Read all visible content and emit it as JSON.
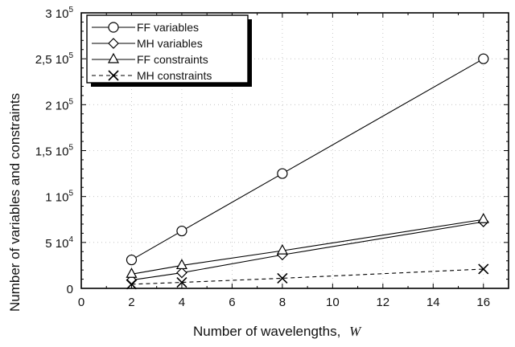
{
  "chart_data": {
    "type": "line",
    "xlabel": "Number of wavelengths,",
    "xlabel_var": "W",
    "ylabel": "Number of variables and constraints",
    "xlim": [
      0,
      17
    ],
    "ylim": [
      0,
      300000
    ],
    "xticks": [
      0,
      2,
      4,
      6,
      8,
      10,
      12,
      14,
      16
    ],
    "xtick_labels": [
      "0",
      "2",
      "4",
      "6",
      "8",
      "10",
      "12",
      "14",
      "16"
    ],
    "yticks": [
      0,
      50000,
      100000,
      150000,
      200000,
      250000,
      300000
    ],
    "ytick_labels": [
      {
        "base": "0",
        "exp": ""
      },
      {
        "base": "5 10",
        "exp": "4"
      },
      {
        "base": "1 10",
        "exp": "5"
      },
      {
        "base": "1,5 10",
        "exp": "5"
      },
      {
        "base": "2 10",
        "exp": "5"
      },
      {
        "base": "2,5 10",
        "exp": "5"
      },
      {
        "base": "3 10",
        "exp": "5"
      }
    ],
    "grid": "dotted",
    "legend_position": "top-left",
    "x": [
      2,
      4,
      8,
      16
    ],
    "series": [
      {
        "name": "FF variables",
        "marker": "circle",
        "line": "solid",
        "values": [
          31000,
          62500,
          125000,
          250000
        ]
      },
      {
        "name": "MH variables",
        "marker": "diamond",
        "line": "solid",
        "values": [
          9000,
          17000,
          36500,
          72500
        ]
      },
      {
        "name": "FF constraints",
        "marker": "triangle",
        "line": "solid",
        "values": [
          15500,
          25000,
          41000,
          75000
        ]
      },
      {
        "name": "MH constraints",
        "marker": "x",
        "line": "dashed",
        "values": [
          4500,
          6500,
          11000,
          21000
        ]
      }
    ]
  }
}
